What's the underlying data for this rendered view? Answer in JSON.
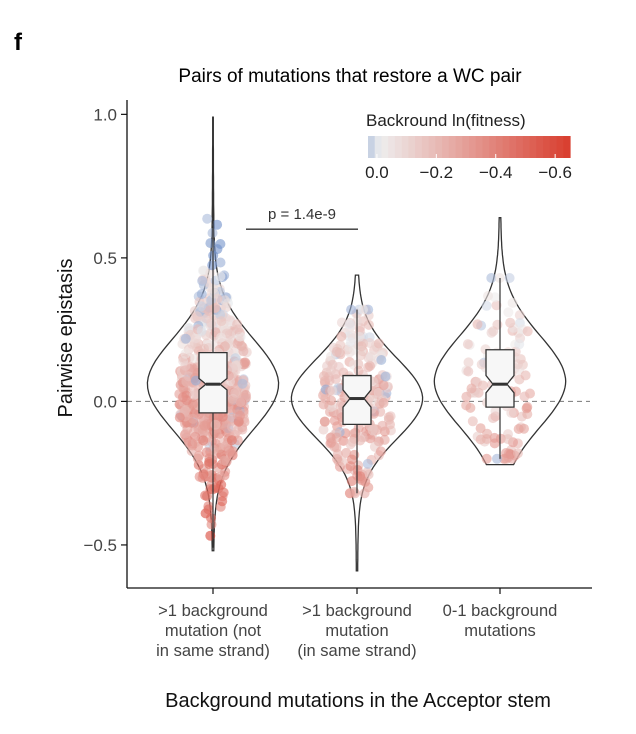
{
  "panel_letter": "f",
  "chart_data": {
    "type": "violin",
    "title": "Pairs of mutations that restore a WC pair",
    "xlabel": "Background mutations in the Acceptor stem",
    "ylabel": "Pairwise epistasis",
    "ylim": [
      -0.65,
      1.05
    ],
    "yticks": [
      "1.0",
      "0.5",
      "0.0",
      "−0.5"
    ],
    "ytick_values": [
      1.0,
      0.5,
      0.0,
      -0.5
    ],
    "reference_line": 0.0,
    "grid": false,
    "categories": [
      [
        ">1 background",
        "mutation (not",
        "in same strand)"
      ],
      [
        ">1 background",
        "mutation",
        "(in same strand)"
      ],
      [
        "0-1 background",
        "mutations"
      ]
    ],
    "groups": [
      {
        "n_points": 620,
        "min": -0.51,
        "q1": -0.04,
        "median": 0.06,
        "q3": 0.17,
        "max": 0.99,
        "notch": [
          0.04,
          0.08
        ],
        "violin_min": -0.52,
        "violin_max": 0.99,
        "density_mode": 0.06,
        "density_sd": 0.16
      },
      {
        "n_points": 260,
        "min": -0.32,
        "q1": -0.08,
        "median": 0.01,
        "q3": 0.09,
        "max": 0.32,
        "notch": [
          -0.02,
          0.04
        ],
        "violin_min": -0.59,
        "violin_max": 0.44,
        "density_mode": 0.01,
        "density_sd": 0.14
      },
      {
        "n_points": 120,
        "min": -0.2,
        "q1": -0.02,
        "median": 0.06,
        "q3": 0.18,
        "max": 0.43,
        "notch": [
          0.03,
          0.09
        ],
        "violin_min": -0.22,
        "violin_max": 0.64,
        "density_mode": 0.07,
        "density_sd": 0.16
      }
    ],
    "comparison": {
      "groups": [
        0,
        1
      ],
      "label": "p = 1.4e-9",
      "y": 0.6
    },
    "color_legend": {
      "title": "Backround ln(fitness)",
      "ticks": [
        "0.0",
        "−0.2",
        "−0.4",
        "−0.6"
      ],
      "tick_values": [
        0.0,
        -0.2,
        -0.4,
        -0.6
      ],
      "range": [
        0.1,
        -0.65
      ],
      "colors": {
        "positive": "#6f8fc9",
        "zero": "#eeeeee",
        "negative": "#d83a2a"
      },
      "placement": "top-right"
    }
  }
}
